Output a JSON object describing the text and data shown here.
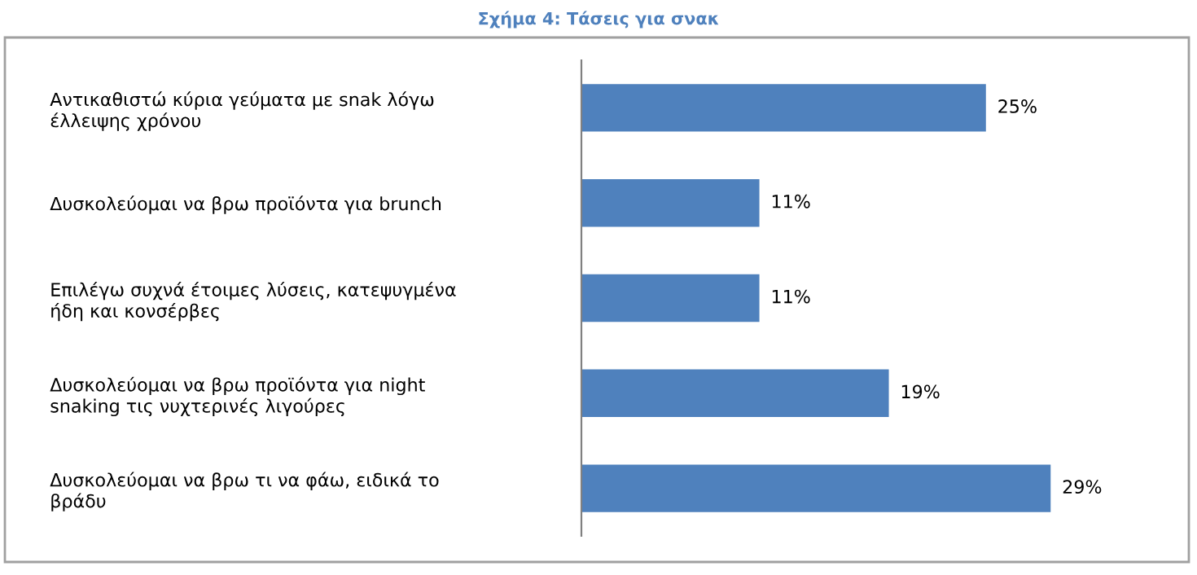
{
  "chart_data": {
    "type": "bar",
    "orientation": "horizontal",
    "title": "Σχήμα 4: Τάσεις για σνακ",
    "categories": [
      "Αντικαθιστώ κύρια γεύματα με snak λόγω\nέλλειψης χρόνου",
      "Δυσκολεύομαι να βρω προϊόντα για brunch",
      "Επιλέγω συχνά έτοιμες λύσεις, κατεψυγμένα\nήδη και κονσέρβες",
      "Δυσκολεύομαι να βρω προϊόντα για night\nsnaking τις νυχτερινές λιγούρες",
      "Δυσκολεύομαι να βρω τι να φάω, ειδικά το\nβράδυ"
    ],
    "values": [
      25,
      11,
      11,
      19,
      29
    ],
    "value_labels": [
      "25%",
      "11%",
      "11%",
      "19%",
      "29%"
    ],
    "color": "#4f81bd",
    "grid": false,
    "legend": false
  }
}
